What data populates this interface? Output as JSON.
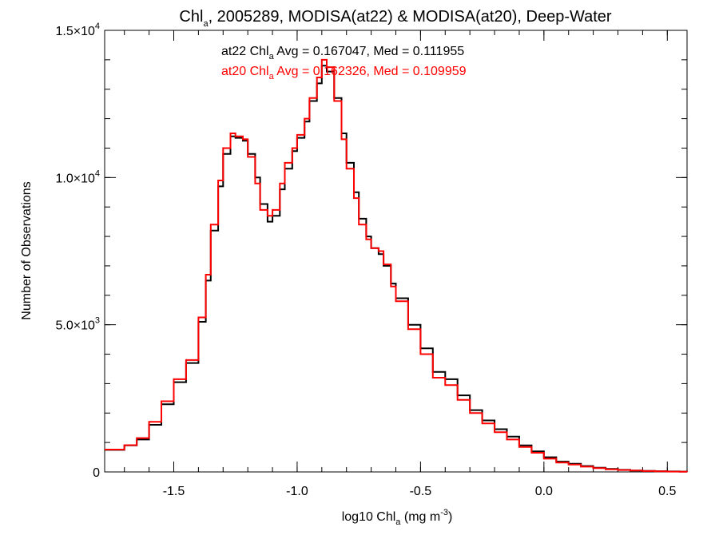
{
  "chart_data": {
    "type": "line",
    "step": true,
    "title": {
      "pre": "Chl",
      "sub": "a",
      "post": ", 2005289, MODISA(at22) & MODISA(at20), Deep-Water"
    },
    "xlabel": {
      "pre": "log10 Chl",
      "sub": "a",
      "mid": " (mg m",
      "sup": "-3",
      "post": ")"
    },
    "ylabel": "Number of Observations",
    "xlim": [
      -1.78,
      0.58
    ],
    "ylim": [
      0,
      15000
    ],
    "x_ticks": [
      {
        "value": -1.5,
        "label": "-1.5"
      },
      {
        "value": -1.0,
        "label": "-1.0"
      },
      {
        "value": -0.5,
        "label": "-0.5"
      },
      {
        "value": 0.0,
        "label": "0.0"
      },
      {
        "value": 0.5,
        "label": "0.5"
      }
    ],
    "y_ticks": [
      {
        "value": 0,
        "mant": "0",
        "exp": ""
      },
      {
        "value": 5000,
        "mant": "5.0×10",
        "exp": "3"
      },
      {
        "value": 10000,
        "mant": "1.0×10",
        "exp": "4"
      },
      {
        "value": 15000,
        "mant": "1.5×10",
        "exp": "4"
      }
    ],
    "x_minor_step": 0.1,
    "y_minor_step": 1000,
    "grid": false,
    "legend_position": "top-center",
    "legend": [
      {
        "series": "at22",
        "pre": "at22 Chl",
        "sub": "a",
        "post": " Avg = 0.167047, Med = 0.111955",
        "color": "#000000"
      },
      {
        "series": "at20",
        "pre": "at20 Chl",
        "sub": "a",
        "post": " Avg = 0.162326, Med = 0.109959",
        "color": "#ff0000"
      }
    ],
    "series": [
      {
        "name": "at22",
        "color": "#000000",
        "points": [
          [
            -1.78,
            750
          ],
          [
            -1.7,
            900
          ],
          [
            -1.65,
            1100
          ],
          [
            -1.6,
            1600
          ],
          [
            -1.55,
            2300
          ],
          [
            -1.5,
            3050
          ],
          [
            -1.45,
            3700
          ],
          [
            -1.4,
            5100
          ],
          [
            -1.37,
            6500
          ],
          [
            -1.35,
            8200
          ],
          [
            -1.32,
            9700
          ],
          [
            -1.3,
            10800
          ],
          [
            -1.27,
            11400
          ],
          [
            -1.25,
            11350
          ],
          [
            -1.22,
            11250
          ],
          [
            -1.2,
            10800
          ],
          [
            -1.17,
            10000
          ],
          [
            -1.15,
            9100
          ],
          [
            -1.12,
            8500
          ],
          [
            -1.1,
            8700
          ],
          [
            -1.07,
            9600
          ],
          [
            -1.05,
            10300
          ],
          [
            -1.02,
            10900
          ],
          [
            -1.0,
            11350
          ],
          [
            -0.97,
            11900
          ],
          [
            -0.95,
            12600
          ],
          [
            -0.92,
            13200
          ],
          [
            -0.9,
            13800
          ],
          [
            -0.88,
            13600
          ],
          [
            -0.85,
            12700
          ],
          [
            -0.82,
            11500
          ],
          [
            -0.8,
            10500
          ],
          [
            -0.77,
            9500
          ],
          [
            -0.75,
            8600
          ],
          [
            -0.72,
            8000
          ],
          [
            -0.7,
            7600
          ],
          [
            -0.67,
            7400
          ],
          [
            -0.65,
            7000
          ],
          [
            -0.62,
            6400
          ],
          [
            -0.6,
            5900
          ],
          [
            -0.55,
            5000
          ],
          [
            -0.5,
            4200
          ],
          [
            -0.45,
            3400
          ],
          [
            -0.4,
            3150
          ],
          [
            -0.35,
            2600
          ],
          [
            -0.3,
            2100
          ],
          [
            -0.25,
            1750
          ],
          [
            -0.2,
            1450
          ],
          [
            -0.15,
            1200
          ],
          [
            -0.1,
            900
          ],
          [
            -0.05,
            700
          ],
          [
            0.0,
            500
          ],
          [
            0.05,
            350
          ],
          [
            0.1,
            280
          ],
          [
            0.15,
            200
          ],
          [
            0.2,
            140
          ],
          [
            0.25,
            100
          ],
          [
            0.3,
            70
          ],
          [
            0.35,
            50
          ],
          [
            0.4,
            35
          ],
          [
            0.45,
            25
          ],
          [
            0.5,
            15
          ],
          [
            0.55,
            10
          ],
          [
            0.58,
            5
          ]
        ]
      },
      {
        "name": "at20",
        "color": "#ff0000",
        "points": [
          [
            -1.78,
            760
          ],
          [
            -1.7,
            910
          ],
          [
            -1.65,
            1150
          ],
          [
            -1.6,
            1700
          ],
          [
            -1.55,
            2400
          ],
          [
            -1.5,
            3150
          ],
          [
            -1.45,
            3800
          ],
          [
            -1.4,
            5250
          ],
          [
            -1.37,
            6700
          ],
          [
            -1.35,
            8400
          ],
          [
            -1.32,
            9900
          ],
          [
            -1.3,
            11000
          ],
          [
            -1.27,
            11500
          ],
          [
            -1.25,
            11400
          ],
          [
            -1.22,
            11300
          ],
          [
            -1.2,
            10700
          ],
          [
            -1.17,
            9800
          ],
          [
            -1.15,
            8900
          ],
          [
            -1.12,
            8700
          ],
          [
            -1.1,
            8900
          ],
          [
            -1.07,
            9800
          ],
          [
            -1.05,
            10500
          ],
          [
            -1.02,
            11000
          ],
          [
            -1.0,
            11450
          ],
          [
            -0.97,
            12000
          ],
          [
            -0.95,
            12700
          ],
          [
            -0.92,
            13400
          ],
          [
            -0.9,
            14000
          ],
          [
            -0.88,
            13750
          ],
          [
            -0.85,
            12600
          ],
          [
            -0.82,
            11300
          ],
          [
            -0.8,
            10300
          ],
          [
            -0.77,
            9300
          ],
          [
            -0.75,
            8400
          ],
          [
            -0.72,
            7900
          ],
          [
            -0.7,
            7600
          ],
          [
            -0.67,
            7500
          ],
          [
            -0.65,
            7050
          ],
          [
            -0.62,
            6300
          ],
          [
            -0.6,
            5800
          ],
          [
            -0.55,
            4850
          ],
          [
            -0.5,
            4000
          ],
          [
            -0.45,
            3200
          ],
          [
            -0.4,
            2950
          ],
          [
            -0.35,
            2450
          ],
          [
            -0.3,
            2000
          ],
          [
            -0.25,
            1650
          ],
          [
            -0.2,
            1350
          ],
          [
            -0.15,
            1100
          ],
          [
            -0.1,
            850
          ],
          [
            -0.05,
            650
          ],
          [
            0.0,
            450
          ],
          [
            0.05,
            320
          ],
          [
            0.1,
            250
          ],
          [
            0.15,
            180
          ],
          [
            0.2,
            130
          ],
          [
            0.25,
            90
          ],
          [
            0.3,
            65
          ],
          [
            0.35,
            45
          ],
          [
            0.4,
            30
          ],
          [
            0.45,
            20
          ],
          [
            0.5,
            12
          ],
          [
            0.55,
            8
          ],
          [
            0.58,
            4
          ]
        ]
      }
    ]
  }
}
